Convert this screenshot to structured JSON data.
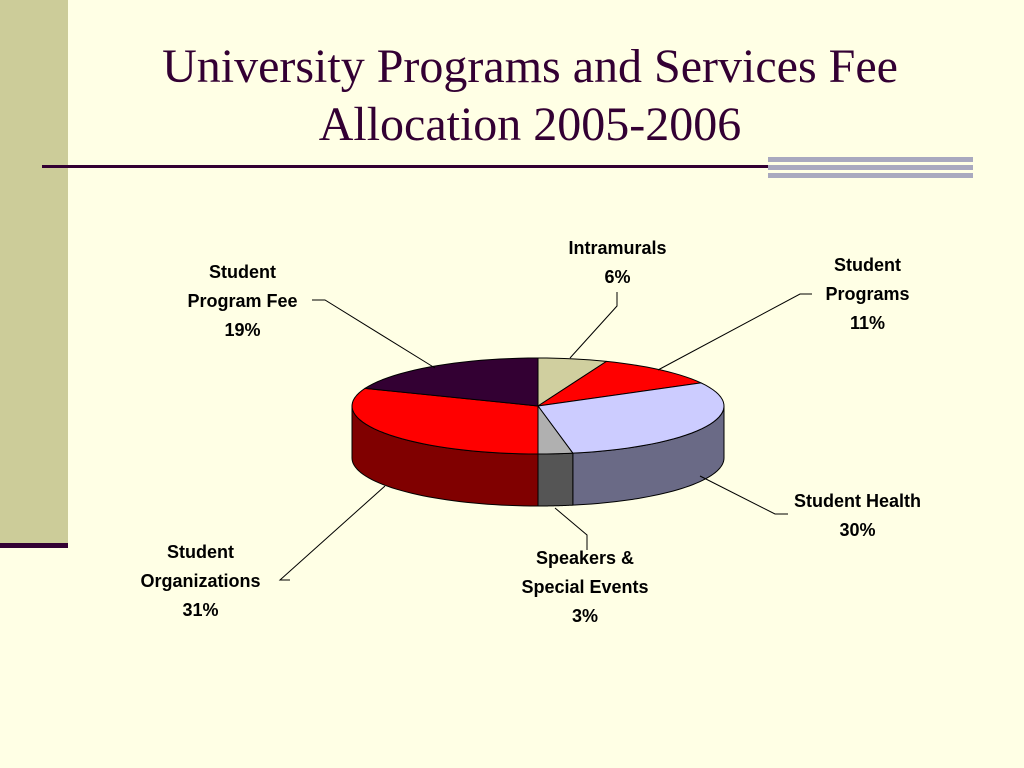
{
  "title": {
    "line1": "University Programs and Services Fee",
    "line2": "Allocation 2005-2006"
  },
  "chart_data": {
    "type": "pie",
    "title": "University Programs and Services Fee Allocation 2005-2006",
    "slices": [
      {
        "id": "intramurals",
        "label": [
          "Intramurals"
        ],
        "pct_text": "6%",
        "value": 6,
        "color": "#D0CF9F",
        "side_color": "#8E8E66"
      },
      {
        "id": "student-programs",
        "label": [
          "Student",
          "Programs"
        ],
        "pct_text": "11%",
        "value": 11,
        "color": "#FF0000",
        "side_color": "#990000"
      },
      {
        "id": "student-health",
        "label": [
          "Student Health"
        ],
        "pct_text": "30%",
        "value": 30,
        "color": "#CCCCFF",
        "side_color": "#6A6A86"
      },
      {
        "id": "speakers-special-events",
        "label": [
          "Speakers &",
          "Special Events"
        ],
        "pct_text": "3%",
        "value": 3,
        "color": "#B0B0B0",
        "side_color": "#555555"
      },
      {
        "id": "student-organizations",
        "label": [
          "Student",
          "Organizations"
        ],
        "pct_text": "31%",
        "value": 31,
        "color": "#FF0000",
        "side_color": "#800000"
      },
      {
        "id": "student-program-fee",
        "label": [
          "Student",
          "Program Fee"
        ],
        "pct_text": "19%",
        "value": 19,
        "color": "#330033",
        "side_color": "#1A001A"
      }
    ],
    "legend": "none",
    "data_labels": "outside with leader lines"
  }
}
